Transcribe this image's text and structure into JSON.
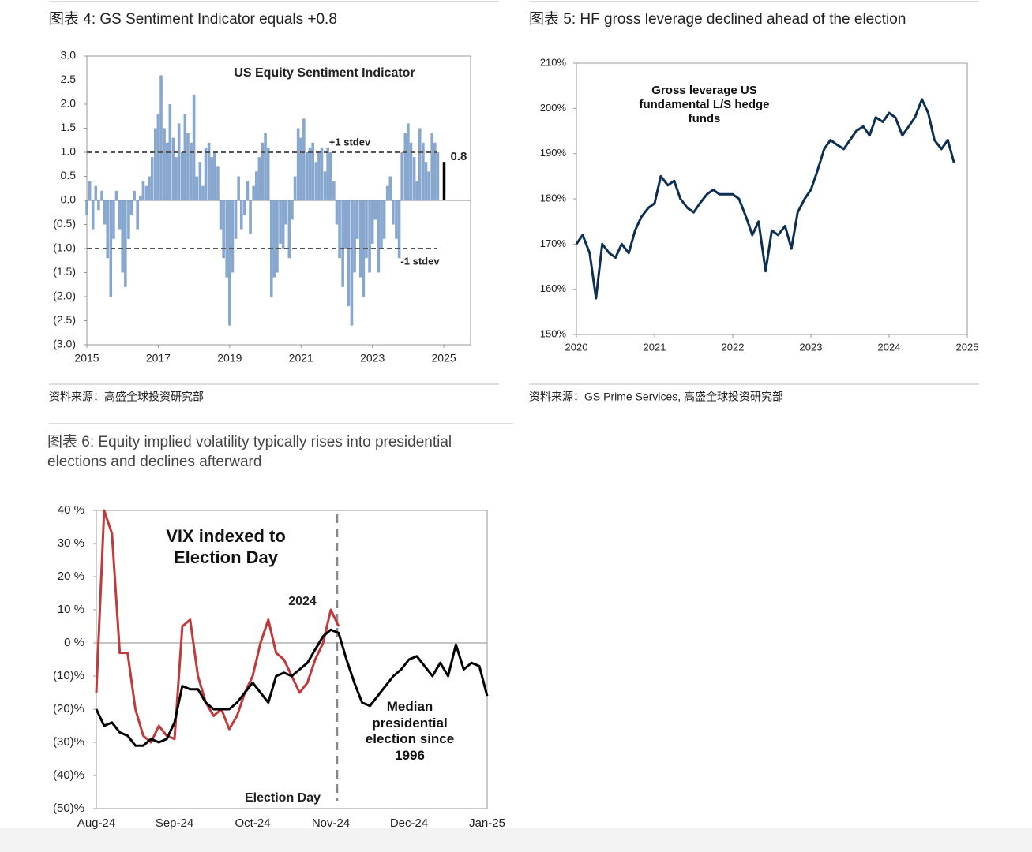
{
  "chart_data": [
    {
      "type": "bar",
      "figure_title": "图表 4: GS Sentiment Indicator equals +0.8",
      "source": "资料来源：高盛全球投资研究部",
      "title": "US Equity Sentiment Indicator",
      "x": [
        2015.0,
        2015.08,
        2015.17,
        2015.25,
        2015.33,
        2015.42,
        2015.5,
        2015.58,
        2015.67,
        2015.75,
        2015.83,
        2015.92,
        2016.0,
        2016.08,
        2016.17,
        2016.25,
        2016.33,
        2016.42,
        2016.5,
        2016.58,
        2016.67,
        2016.75,
        2016.83,
        2016.92,
        2017.0,
        2017.08,
        2017.17,
        2017.25,
        2017.33,
        2017.42,
        2017.5,
        2017.58,
        2017.67,
        2017.75,
        2017.83,
        2017.92,
        2018.0,
        2018.08,
        2018.17,
        2018.25,
        2018.33,
        2018.42,
        2018.5,
        2018.58,
        2018.67,
        2018.75,
        2018.83,
        2018.92,
        2019.0,
        2019.08,
        2019.17,
        2019.25,
        2019.33,
        2019.42,
        2019.5,
        2019.58,
        2019.67,
        2019.75,
        2019.83,
        2019.92,
        2020.0,
        2020.08,
        2020.17,
        2020.25,
        2020.33,
        2020.42,
        2020.5,
        2020.58,
        2020.67,
        2020.75,
        2020.83,
        2020.92,
        2021.0,
        2021.08,
        2021.17,
        2021.25,
        2021.33,
        2021.42,
        2021.5,
        2021.58,
        2021.67,
        2021.75,
        2021.83,
        2021.92,
        2022.0,
        2022.08,
        2022.17,
        2022.25,
        2022.33,
        2022.42,
        2022.5,
        2022.58,
        2022.67,
        2022.75,
        2022.83,
        2022.92,
        2023.0,
        2023.08,
        2023.17,
        2023.25,
        2023.33,
        2023.42,
        2023.5,
        2023.58,
        2023.67,
        2023.75,
        2023.83,
        2023.92,
        2024.0,
        2024.08,
        2024.17,
        2024.25,
        2024.33,
        2024.42,
        2024.5,
        2024.58,
        2024.67,
        2024.75,
        2024.83,
        2024.92
      ],
      "values": [
        -0.3,
        0.4,
        -0.6,
        0.3,
        -0.2,
        0.2,
        -0.5,
        -1.2,
        -2.0,
        -0.8,
        0.2,
        -0.6,
        -1.5,
        -1.8,
        -0.8,
        -0.3,
        0.2,
        -0.6,
        0.1,
        0.4,
        0.3,
        0.5,
        0.9,
        1.5,
        1.8,
        2.6,
        1.5,
        1.2,
        2.0,
        1.3,
        0.9,
        1.6,
        1.0,
        1.8,
        1.4,
        1.2,
        2.2,
        0.5,
        0.8,
        0.3,
        1.1,
        1.2,
        0.9,
        1.0,
        0.7,
        -0.6,
        -1.2,
        -1.6,
        -2.6,
        -1.5,
        -0.8,
        0.5,
        -0.6,
        -0.3,
        0.4,
        -0.7,
        0.3,
        0.6,
        0.9,
        1.2,
        1.4,
        1.1,
        -2.0,
        -1.6,
        -1.5,
        -0.9,
        -1.0,
        -0.5,
        -1.2,
        -0.4,
        0.5,
        1.5,
        1.3,
        1.7,
        1.0,
        1.1,
        1.2,
        0.8,
        1.0,
        1.1,
        0.6,
        1.1,
        1.0,
        0.4,
        -0.5,
        -1.2,
        -1.8,
        -1.0,
        -2.2,
        -2.6,
        -1.5,
        -0.8,
        -1.6,
        -2.0,
        -1.2,
        -1.5,
        -0.9,
        -0.4,
        -1.5,
        -1.0,
        -0.8,
        0.3,
        0.5,
        -0.5,
        -0.8,
        -1.2,
        1.0,
        1.4,
        1.6,
        1.2,
        0.9,
        0.4,
        1.5,
        1.2,
        0.8,
        0.6,
        1.4,
        1.2,
        1.0,
        0.8
      ],
      "color": "#7b9dc9",
      "highlight_last": true,
      "highlight_color": "#000000",
      "xlim": [
        2015,
        2025.75
      ],
      "xticks": [
        2015,
        2017,
        2019,
        2021,
        2023,
        2025
      ],
      "ylim": [
        -3,
        3
      ],
      "yticks": [
        {
          "value": 3,
          "label": "3.0"
        },
        {
          "value": 2.5,
          "label": "2.5"
        },
        {
          "value": 2,
          "label": "2.0"
        },
        {
          "value": 1.5,
          "label": "1.5"
        },
        {
          "value": 1,
          "label": "1.0"
        },
        {
          "value": 0.5,
          "label": "0.5"
        },
        {
          "value": 0,
          "label": "0.0"
        },
        {
          "value": -0.5,
          "label": "(0.5)"
        },
        {
          "value": -1,
          "label": "(1.0)"
        },
        {
          "value": -1.5,
          "label": "(1.5)"
        },
        {
          "value": -2,
          "label": "(2.0)"
        },
        {
          "value": -2.5,
          "label": "(2.5)"
        },
        {
          "value": -3,
          "label": "(3.0)"
        }
      ],
      "reference_lines": [
        {
          "value": 1,
          "label": "+1 stdev"
        },
        {
          "value": -1,
          "label": "-1 stdev"
        }
      ]
    },
    {
      "type": "line",
      "figure_title": "图表 5: HF gross leverage declined ahead of the election",
      "source": "资料来源：GS Prime Services, 高盛全球投资研究部",
      "annotation": "Gross leverage US fundamental L/S hedge funds",
      "x": [
        2020.0,
        2020.08,
        2020.17,
        2020.25,
        2020.33,
        2020.42,
        2020.5,
        2020.58,
        2020.67,
        2020.75,
        2020.83,
        2020.92,
        2021.0,
        2021.08,
        2021.17,
        2021.25,
        2021.33,
        2021.42,
        2021.5,
        2021.58,
        2021.67,
        2021.75,
        2021.83,
        2021.92,
        2022.0,
        2022.08,
        2022.17,
        2022.25,
        2022.33,
        2022.42,
        2022.5,
        2022.58,
        2022.67,
        2022.75,
        2022.83,
        2022.92,
        2023.0,
        2023.08,
        2023.17,
        2023.25,
        2023.33,
        2023.42,
        2023.5,
        2023.58,
        2023.67,
        2023.75,
        2023.83,
        2023.92,
        2024.0,
        2024.08,
        2024.17,
        2024.25,
        2024.33,
        2024.42,
        2024.5,
        2024.58,
        2024.67,
        2024.75,
        2024.83
      ],
      "values": [
        170,
        172,
        168,
        158,
        170,
        168,
        167,
        170,
        168,
        173,
        176,
        178,
        179,
        185,
        183,
        184,
        180,
        178,
        177,
        179,
        181,
        182,
        181,
        181,
        181,
        180,
        176,
        172,
        175,
        164,
        173,
        172,
        174,
        169,
        177,
        180,
        182,
        186,
        191,
        193,
        192,
        191,
        193,
        195,
        196,
        194,
        198,
        197,
        199,
        198,
        194,
        196,
        198,
        202,
        199,
        193,
        191,
        193,
        188
      ],
      "color": "#0d2f52",
      "xlim": [
        2020,
        2025
      ],
      "xticks": [
        2020,
        2021,
        2022,
        2023,
        2024,
        2025
      ],
      "ylim": [
        150,
        210
      ],
      "yticks": [
        {
          "value": 210,
          "label": "210%"
        },
        {
          "value": 200,
          "label": "200%"
        },
        {
          "value": 190,
          "label": "190%"
        },
        {
          "value": 180,
          "label": "180%"
        },
        {
          "value": 170,
          "label": "170%"
        },
        {
          "value": 160,
          "label": "160%"
        },
        {
          "value": 150,
          "label": "150%"
        }
      ]
    },
    {
      "type": "line",
      "figure_title": "图表 6: Equity implied volatility typically rises into presidential elections and declines afterward",
      "title": "VIX indexed to Election Day",
      "annotation": "Election Day",
      "categories": [
        "Aug-24",
        null,
        null,
        null,
        null,
        null,
        null,
        null,
        null,
        null,
        "Sep-24",
        null,
        null,
        null,
        null,
        null,
        null,
        null,
        null,
        null,
        "Oct-24",
        null,
        null,
        null,
        null,
        null,
        null,
        null,
        null,
        null,
        "Nov-24",
        null,
        null,
        null,
        null,
        null,
        null,
        null,
        null,
        null,
        "Dec-24",
        null,
        null,
        null,
        null,
        null,
        null,
        null,
        null,
        null,
        "Jan-25"
      ],
      "series": [
        {
          "name": "2024",
          "color": "#c0393b",
          "values": [
            -15,
            40,
            33,
            -3,
            -3,
            -20,
            -28,
            -30,
            -25,
            -28,
            -29,
            5,
            7,
            -10,
            -18,
            -22,
            -20,
            -26,
            -22,
            -15,
            -10,
            0,
            7,
            -3,
            -5,
            -10,
            -15,
            -12,
            -5,
            0,
            10,
            5,
            null,
            null,
            null,
            null,
            null,
            null,
            null,
            null,
            null,
            null,
            null,
            null,
            null,
            null,
            null,
            null,
            null,
            null,
            null
          ]
        },
        {
          "name": "Median presidential election since 1996",
          "color": "#000000",
          "values": [
            -20,
            -25,
            -24,
            -27,
            -28,
            -31,
            -31,
            -29,
            -30,
            -29,
            -24,
            -13,
            -14,
            -14,
            -18,
            -20,
            -20,
            -20,
            -18,
            -15,
            -12,
            -15,
            -18,
            -10,
            -9,
            -10,
            -8,
            -6,
            -2,
            2,
            4,
            3,
            -5,
            -12,
            -18,
            -19,
            -16,
            -13,
            -10,
            -8,
            -5,
            -4,
            -7,
            -10,
            -6,
            -10,
            -0.5,
            -8,
            -6,
            -7,
            -16
          ]
        }
      ],
      "ylim": [
        -50,
        40
      ],
      "yticks": [
        {
          "value": 40,
          "label": "40 %"
        },
        {
          "value": 30,
          "label": "30 %"
        },
        {
          "value": 20,
          "label": "20 %"
        },
        {
          "value": 10,
          "label": "10 %"
        },
        {
          "value": 0,
          "label": "0 %"
        },
        {
          "value": -10,
          "label": "(10)%"
        },
        {
          "value": -20,
          "label": "(20)%"
        },
        {
          "value": -30,
          "label": "(30)%"
        },
        {
          "value": -40,
          "label": "(40)%"
        },
        {
          "value": -50,
          "label": "(50)%"
        }
      ]
    }
  ]
}
